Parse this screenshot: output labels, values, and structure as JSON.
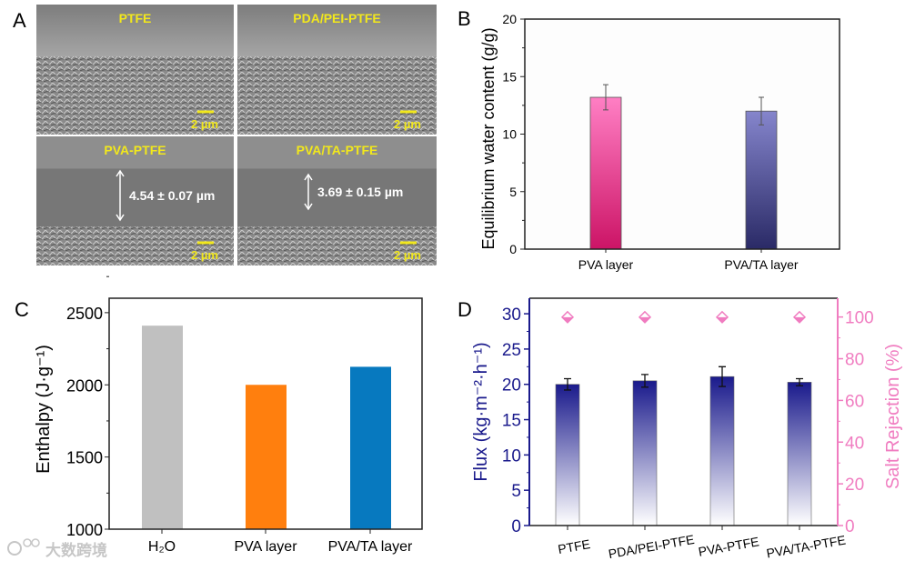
{
  "panel_labels": {
    "a": "A",
    "b": "B",
    "c": "C",
    "d": "D"
  },
  "sem": {
    "images": [
      {
        "title": "PTFE",
        "scale": "2 µm",
        "thickness": ""
      },
      {
        "title": "PDA/PEI-PTFE",
        "scale": "2 µm",
        "thickness": ""
      },
      {
        "title": "PVA-PTFE",
        "scale": "2 µm",
        "thickness": "4.54 ± 0.07 µm"
      },
      {
        "title": "PVA/TA-PTFE",
        "scale": "2 µm",
        "thickness": "3.69 ± 0.15 µm"
      }
    ],
    "label_color": "#f2e81c"
  },
  "watermark": "大数跨境",
  "chart_data": [
    {
      "id": "B",
      "type": "bar",
      "title": "",
      "ylabel": "Equilibrium water content (g/g)",
      "xlabel": "",
      "categories": [
        "PVA layer",
        "PVA/TA layer"
      ],
      "values": [
        13.2,
        12.0
      ],
      "errors": [
        1.1,
        1.2
      ],
      "ylim": [
        0,
        20
      ],
      "yticks": [
        0,
        5,
        10,
        15,
        20
      ],
      "colors": [
        [
          "#ff7fc4",
          "#cc1466"
        ],
        [
          "#8585cc",
          "#2a2a66"
        ]
      ]
    },
    {
      "id": "C",
      "type": "bar",
      "title": "",
      "ylabel": "Enthalpy (J·g⁻¹)",
      "xlabel": "",
      "categories": [
        "H₂O",
        "PVA layer",
        "PVA/TA layer"
      ],
      "values": [
        2410,
        2000,
        2125
      ],
      "ylim": [
        1000,
        2600
      ],
      "yticks": [
        1000,
        1500,
        2000,
        2500
      ],
      "colors": [
        "#c0c0c0",
        "#ff7f0e",
        "#0779bf"
      ]
    },
    {
      "id": "D",
      "type": "bar",
      "title": "",
      "ylabel": "Flux (kg·m⁻²·h⁻¹)",
      "y2label": "Salt Rejection (%)",
      "categories": [
        "PTFE",
        "PDA/PEI-PTFE",
        "PVA-PTFE",
        "PVA/TA-PTFE"
      ],
      "series": [
        {
          "name": "Flux",
          "axis": "left",
          "type": "bar",
          "values": [
            20.0,
            20.5,
            21.1,
            20.3
          ],
          "errors": [
            0.8,
            0.9,
            1.4,
            0.5
          ],
          "color": "#1a1a8c"
        },
        {
          "name": "Salt Rejection",
          "axis": "right",
          "type": "scatter",
          "marker": "diamond",
          "values": [
            99.9,
            99.9,
            99.9,
            99.9
          ],
          "color": "#f07cc0"
        }
      ],
      "ylim": [
        0,
        32.2
      ],
      "yticks": [
        0,
        5,
        10,
        15,
        20,
        25,
        30
      ],
      "y2lim": [
        0,
        109
      ],
      "y2ticks": [
        0,
        20,
        40,
        60,
        80,
        100
      ],
      "left_axis_color": "#1a1a8c",
      "right_axis_color": "#f07cc0"
    }
  ]
}
